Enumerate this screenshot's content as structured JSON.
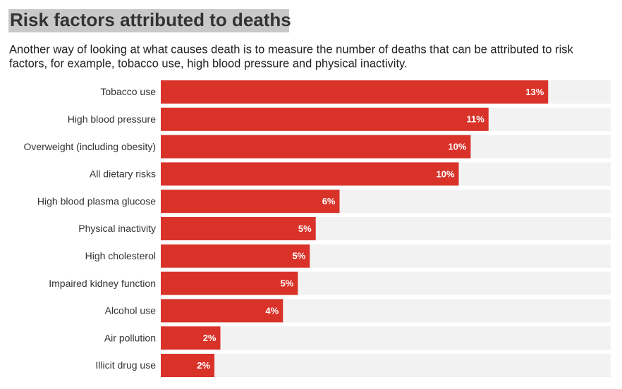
{
  "chart_data": {
    "type": "bar",
    "title": "Risk factors attributed to deaths",
    "subtitle": [
      "Another way of looking at what causes death is to measure the number of deaths that can be attributed to risk",
      "factors, for example, tobacco use, high blood pressure and physical inactivity."
    ],
    "categories": [
      "Tobacco use",
      "High blood pressure",
      "Overweight (including obesity)",
      "All dietary risks",
      "High blood plasma glucose",
      "Physical inactivity",
      "High cholesterol",
      "Impaired kidney function",
      "Alcohol use",
      "Air pollution",
      "Illicit drug use"
    ],
    "values": [
      13.0,
      11.0,
      10.4,
      10.0,
      6.0,
      5.2,
      5.0,
      4.6,
      4.1,
      2.0,
      1.8
    ],
    "value_labels": [
      "13%",
      "11%",
      "10%",
      "10%",
      "6%",
      "5%",
      "5%",
      "5%",
      "4%",
      "2%",
      "2%"
    ],
    "color": "#d93229",
    "track_color": "#f2f2f2",
    "xlim": [
      0,
      15.1
    ]
  }
}
